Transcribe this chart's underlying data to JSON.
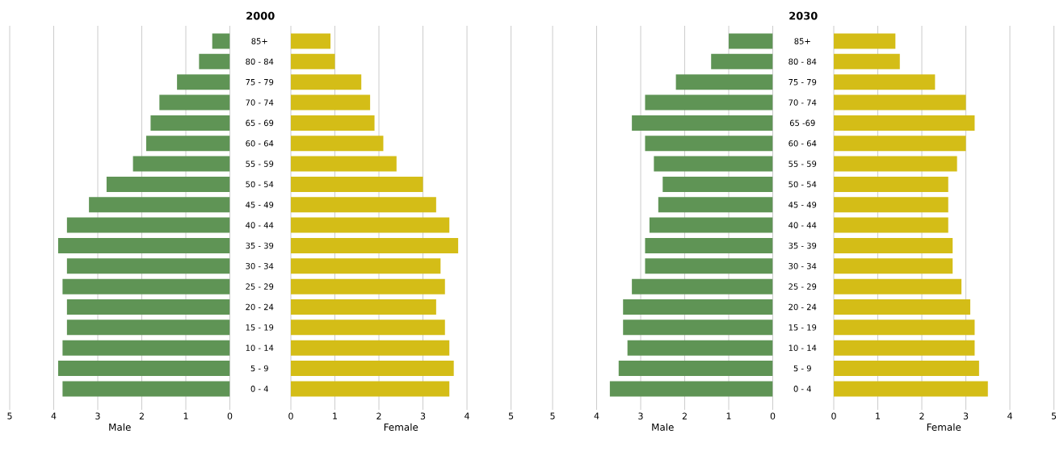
{
  "chart_data": [
    {
      "type": "bar",
      "orientation": "horizontal",
      "title": "2000",
      "xlabel": "Male",
      "color": "#5f9455",
      "categories": [
        "85+",
        "80 - 84",
        "75 - 79",
        "70 - 74",
        "65 - 69",
        "60 - 64",
        "55 - 59",
        "50 - 54",
        "45 - 49",
        "40 - 44",
        "35 - 39",
        "30 - 34",
        "25 - 29",
        "20 - 24",
        "15 - 19",
        "10 - 14",
        "5 - 9",
        "0 - 4"
      ],
      "values": [
        0.4,
        0.7,
        1.2,
        1.6,
        1.8,
        1.9,
        2.2,
        2.8,
        3.2,
        3.7,
        3.9,
        3.7,
        3.8,
        3.7,
        3.7,
        3.8,
        3.9,
        3.8
      ],
      "xlim": [
        5,
        0
      ],
      "xticks": [
        5,
        4,
        3,
        2,
        1,
        0
      ],
      "grid": "x"
    },
    {
      "type": "bar",
      "orientation": "horizontal",
      "xlabel": "Female",
      "color": "#d4bd17",
      "tick_labels": "x",
      "values": [
        0.9,
        1.0,
        1.6,
        1.8,
        1.9,
        2.1,
        2.4,
        3.0,
        3.3,
        3.6,
        3.8,
        3.4,
        3.5,
        3.3,
        3.5,
        3.6,
        3.7,
        3.6
      ],
      "xlim": [
        0,
        5
      ],
      "xticks": [
        0,
        1,
        2,
        3,
        4,
        5
      ],
      "grid": "x"
    },
    {
      "type": "bar",
      "orientation": "horizontal",
      "title": "2030",
      "xlabel": "Male",
      "color": "#5f9455",
      "categories": [
        "85+",
        "80 - 84",
        "75 - 79",
        "70 - 74",
        "65 -69",
        "60 - 64",
        "55 - 59",
        "50 - 54",
        "45 - 49",
        "40 - 44",
        "35 - 39",
        "30 - 34",
        "25 - 29",
        "20 - 24",
        "15 - 19",
        "10 - 14",
        "5 - 9",
        "0 - 4"
      ],
      "values": [
        1.0,
        1.4,
        2.2,
        2.9,
        3.2,
        2.9,
        2.7,
        2.5,
        2.6,
        2.8,
        2.9,
        2.9,
        3.2,
        3.4,
        3.4,
        3.3,
        3.5,
        3.7
      ],
      "xlim": [
        5,
        0
      ],
      "xticks": [
        5,
        4,
        3,
        2,
        1,
        0
      ],
      "grid": "x"
    },
    {
      "type": "bar",
      "orientation": "horizontal",
      "xlabel": "Female",
      "color": "#d4bd17",
      "tick_labels": "x",
      "values": [
        1.4,
        1.5,
        2.3,
        3.0,
        3.2,
        3.0,
        2.8,
        2.6,
        2.6,
        2.6,
        2.7,
        2.7,
        2.9,
        3.1,
        3.2,
        3.2,
        3.3,
        3.5
      ],
      "xlim": [
        0,
        5
      ],
      "xticks": [
        0,
        1,
        2,
        3,
        4,
        5
      ],
      "grid": "x"
    }
  ]
}
